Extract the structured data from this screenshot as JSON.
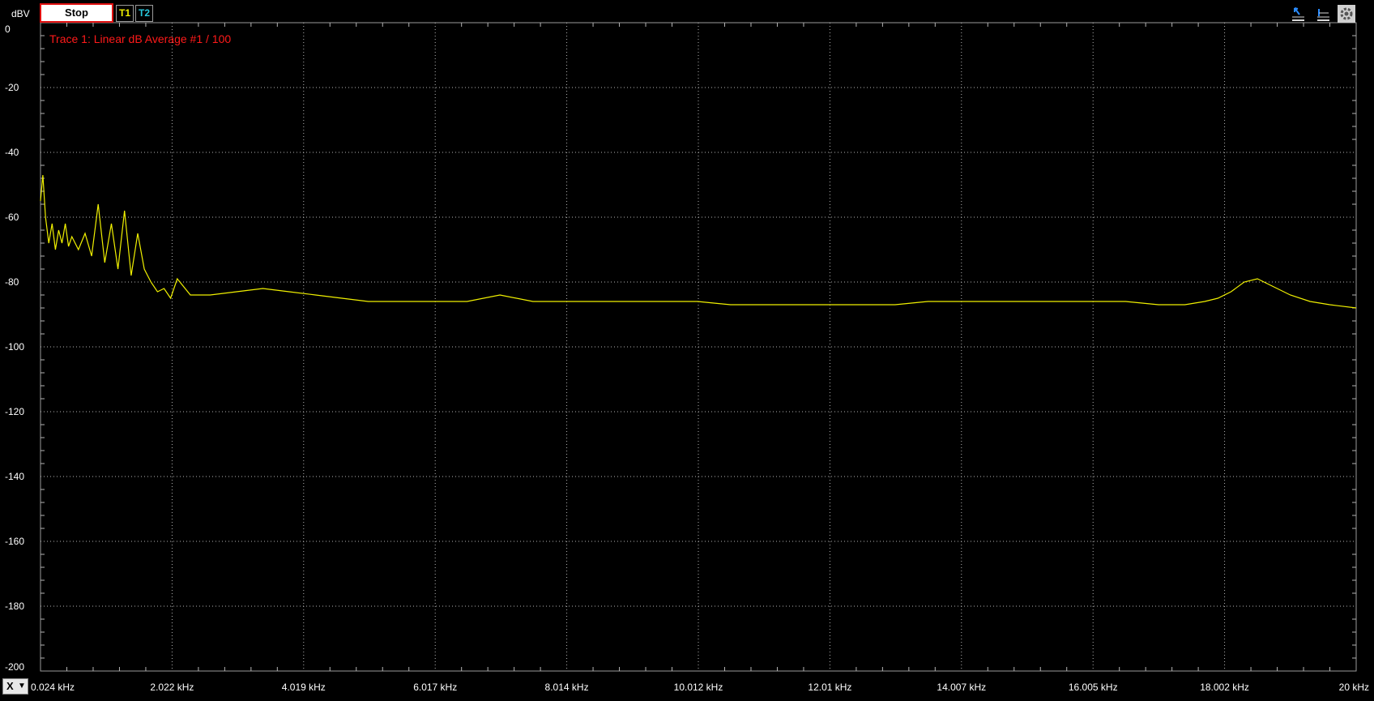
{
  "toolbar": {
    "unit": "dBV",
    "stop_label": "Stop",
    "trace1_label": "T1",
    "trace2_label": "T2",
    "icons": [
      "marker-icon",
      "baseline-icon",
      "settings-icon"
    ]
  },
  "x_axis_button": {
    "label": "X",
    "dropdown_icon": "chevron-down-icon"
  },
  "colors": {
    "background": "#000000",
    "grid": "#b4b4b4",
    "trace1": "#f0f000",
    "trace2": "#27c8dd",
    "annotation": "#ff1a1a",
    "stop_border": "#e01010"
  },
  "chart_data": {
    "type": "line",
    "title": "",
    "annotation": "Trace 1: Linear dB Average #1 / 100",
    "xlabel": "",
    "ylabel": "dBV",
    "xlim": [
      0.024,
      20
    ],
    "ylim": [
      -200,
      0
    ],
    "grid": true,
    "x_tick_values": [
      0.024,
      2.022,
      4.019,
      6.017,
      8.014,
      10.012,
      12.01,
      14.007,
      16.005,
      18.002,
      20
    ],
    "x_tick_labels": [
      "0.024 kHz",
      "2.022 kHz",
      "4.019 kHz",
      "6.017 kHz",
      "8.014 kHz",
      "10.012 kHz",
      "12.01 kHz",
      "14.007 kHz",
      "16.005 kHz",
      "18.002 kHz",
      "20 kHz"
    ],
    "y_tick_values": [
      0,
      -20,
      -40,
      -60,
      -80,
      -100,
      -120,
      -140,
      -160,
      -180,
      -200
    ],
    "y_tick_labels": [
      "0",
      "-20",
      "-40",
      "-60",
      "-80",
      "-100",
      "-120",
      "-140",
      "-160",
      "-180",
      "-200"
    ],
    "series": [
      {
        "name": "T1",
        "x": [
          0.024,
          0.06,
          0.1,
          0.15,
          0.2,
          0.25,
          0.3,
          0.35,
          0.4,
          0.45,
          0.5,
          0.6,
          0.7,
          0.8,
          0.9,
          1.0,
          1.1,
          1.2,
          1.3,
          1.4,
          1.5,
          1.6,
          1.7,
          1.8,
          1.9,
          2.0,
          2.1,
          2.3,
          2.6,
          3.0,
          3.4,
          3.8,
          4.2,
          4.6,
          5.0,
          5.5,
          6.0,
          6.5,
          7.0,
          7.5,
          8.0,
          8.5,
          9.0,
          9.5,
          10.0,
          10.5,
          11.0,
          11.5,
          12.0,
          12.5,
          13.0,
          13.5,
          14.0,
          14.5,
          15.0,
          15.5,
          16.0,
          16.5,
          17.0,
          17.4,
          17.7,
          17.9,
          18.1,
          18.3,
          18.5,
          18.7,
          19.0,
          19.3,
          19.6,
          20.0
        ],
        "y": [
          -55,
          -47,
          -60,
          -68,
          -62,
          -70,
          -64,
          -68,
          -62,
          -69,
          -66,
          -70,
          -65,
          -72,
          -56,
          -74,
          -62,
          -76,
          -58,
          -78,
          -65,
          -76,
          -80,
          -83,
          -82,
          -85,
          -79,
          -84,
          -84,
          -83,
          -82,
          -83,
          -84,
          -85,
          -86,
          -86,
          -86,
          -86,
          -84,
          -86,
          -86,
          -86,
          -86,
          -86,
          -86,
          -87,
          -87,
          -87,
          -87,
          -87,
          -87,
          -86,
          -86,
          -86,
          -86,
          -86,
          -86,
          -86,
          -87,
          -87,
          -86,
          -85,
          -83,
          -80,
          -79,
          -81,
          -84,
          -86,
          -87,
          -88
        ]
      }
    ]
  }
}
